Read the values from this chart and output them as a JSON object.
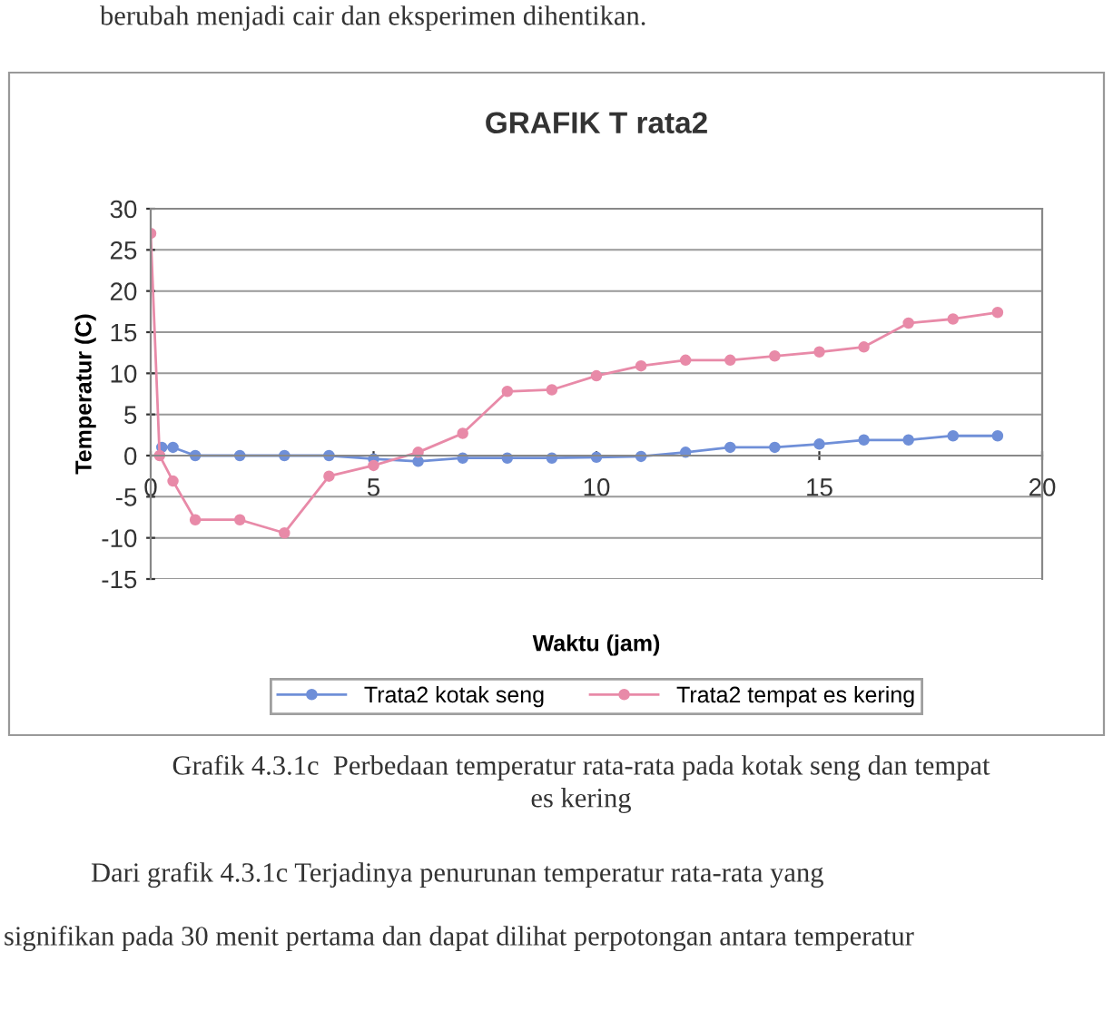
{
  "chart_data": {
    "type": "line",
    "title": "GRAFIK T rata2",
    "xlabel": "Waktu (jam)",
    "ylabel": "Temperatur (C)",
    "xlim": [
      0,
      20
    ],
    "xticks": [
      0,
      5,
      10,
      15,
      20
    ],
    "ylim": [
      -15,
      30
    ],
    "yticks": [
      -15,
      -10,
      -5,
      0,
      5,
      10,
      15,
      20,
      25,
      30
    ],
    "grid": "y",
    "legend": "bottom",
    "marker": "circle",
    "line_style": "solid",
    "series": [
      {
        "name": "Trata2 kotak seng",
        "color": "#6f8fd8",
        "x": [
          0.25,
          0.5,
          1,
          2,
          3,
          4,
          5,
          6,
          7,
          8,
          9,
          10,
          11,
          12,
          13,
          14,
          15,
          16,
          17,
          18,
          19
        ],
        "values": [
          1.0,
          1.0,
          0,
          0,
          0,
          0,
          -0.4,
          -0.7,
          -0.3,
          -0.3,
          -0.3,
          -0.2,
          -0.1,
          0.4,
          1.0,
          1.0,
          1.4,
          1.9,
          1.9,
          2.4,
          2.4
        ]
      },
      {
        "name": "Trata2 tempat es kering",
        "color": "#e88aa8",
        "x": [
          0,
          0.2,
          0.5,
          1,
          2,
          3,
          4,
          5,
          6,
          7,
          8,
          9,
          10,
          11,
          12,
          13,
          14,
          15,
          16,
          17,
          18,
          19
        ],
        "values": [
          27,
          0,
          -3.1,
          -7.8,
          -7.8,
          -9.4,
          -2.5,
          -1.2,
          0.4,
          2.7,
          7.8,
          8.0,
          9.7,
          10.9,
          11.6,
          11.6,
          12.1,
          12.6,
          13.2,
          16.1,
          16.6,
          17.4
        ]
      }
    ],
    "annotations": [
      "berubah menjadi cair dan eksperimen dihentikan.",
      "Grafik 4.3.1c  Perbedaan temperatur rata-rata pada kotak seng dan tempat",
      "es kering",
      "Dari grafik 4.3.1c Terjadinya penurunan temperatur rata-rata yang",
      "signifikan pada 30 menit pertama dan dapat dilihat perpotongan antara temperatur"
    ]
  }
}
